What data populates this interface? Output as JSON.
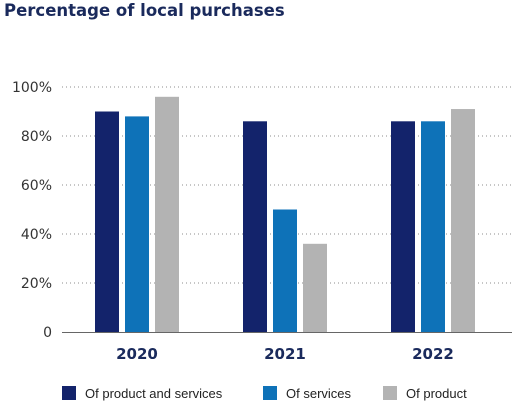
{
  "chart_data": {
    "type": "bar",
    "title": "Percentage of local purchases",
    "categories": [
      "2020",
      "2021",
      "2022"
    ],
    "series": [
      {
        "name": "Of product and services",
        "color": "#13236b",
        "values": [
          90,
          86,
          86
        ]
      },
      {
        "name": "Of services",
        "color": "#0e72b8",
        "values": [
          88,
          50,
          86
        ]
      },
      {
        "name": "Of product",
        "color": "#b3b3b3",
        "values": [
          96,
          36,
          91
        ]
      }
    ],
    "yticks": [
      "0",
      "20%",
      "40%",
      "60%",
      "80%",
      "100%"
    ],
    "ylim": [
      0,
      100
    ],
    "grid": "dotted horizontal",
    "legend_position": "bottom"
  }
}
